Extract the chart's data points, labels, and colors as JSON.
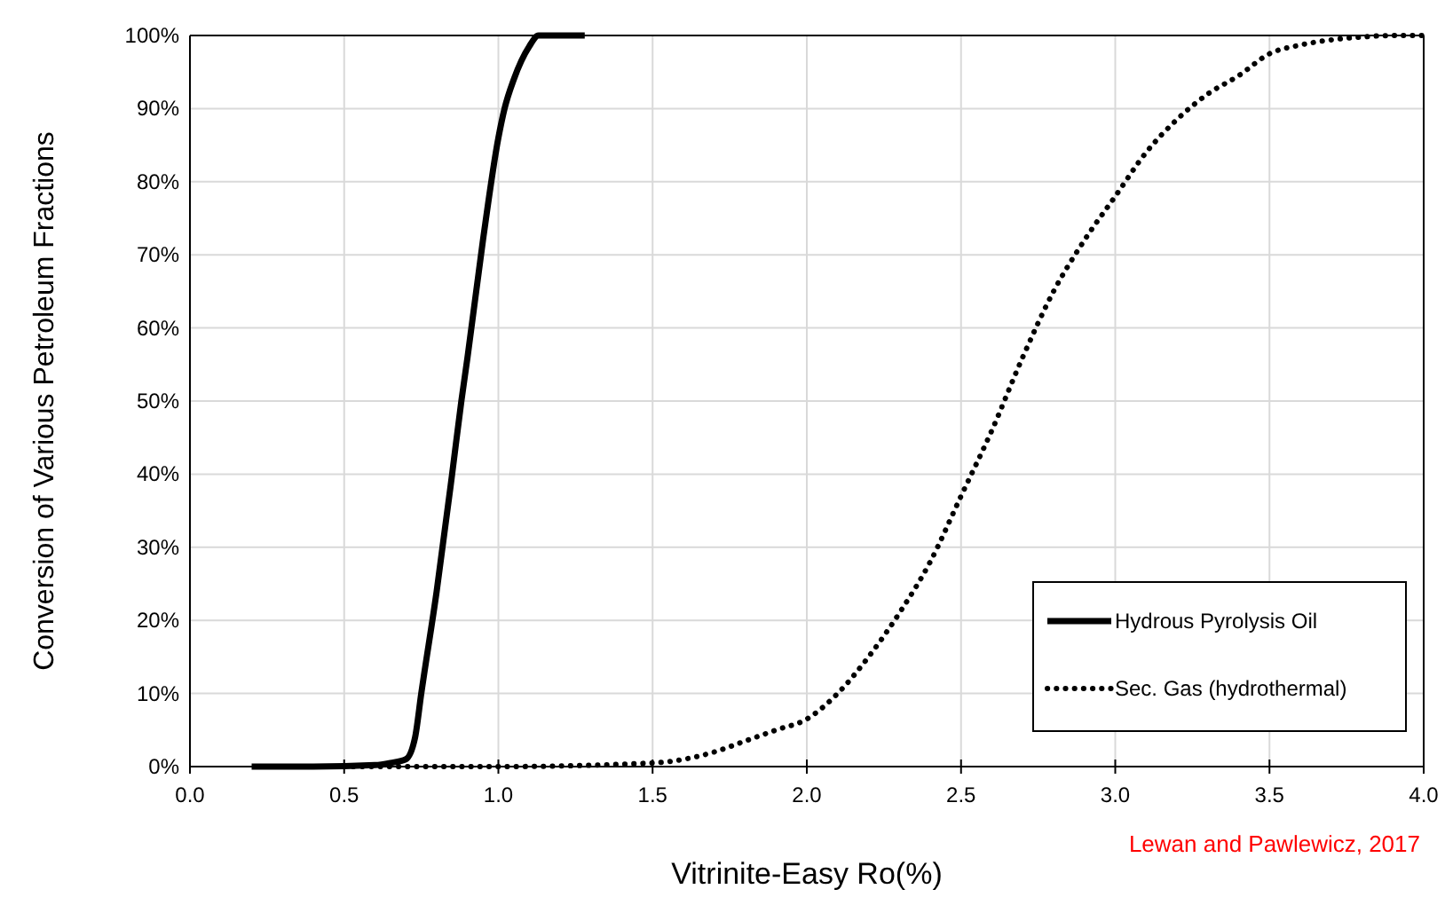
{
  "chart_data": {
    "type": "line",
    "xlabel": "Vitrinite-Easy Ro(%)",
    "ylabel": "Conversion of Various Petroleum Fractions",
    "annotations": [
      "Lewan and Pawlewicz, 2017"
    ],
    "xlim": [
      0,
      4
    ],
    "xticks": [
      {
        "value": 0,
        "label": "0.0"
      },
      {
        "value": 0.5,
        "label": "0.5"
      },
      {
        "value": 1,
        "label": "1.0"
      },
      {
        "value": 1.5,
        "label": "1.5"
      },
      {
        "value": 2,
        "label": "2.0"
      },
      {
        "value": 2.5,
        "label": "2.5"
      },
      {
        "value": 3,
        "label": "3.0"
      },
      {
        "value": 3.5,
        "label": "3.5"
      },
      {
        "value": 4,
        "label": "4.0"
      }
    ],
    "ylim": [
      0,
      100
    ],
    "yticks": [
      {
        "value": 0,
        "label": "0%"
      },
      {
        "value": 10,
        "label": "10%"
      },
      {
        "value": 20,
        "label": "20%"
      },
      {
        "value": 30,
        "label": "30%"
      },
      {
        "value": 40,
        "label": "40%"
      },
      {
        "value": 50,
        "label": "50%"
      },
      {
        "value": 60,
        "label": "60%"
      },
      {
        "value": 70,
        "label": "70%"
      },
      {
        "value": 80,
        "label": "80%"
      },
      {
        "value": 90,
        "label": "90%"
      },
      {
        "value": 100,
        "label": "100%"
      }
    ],
    "grid": true,
    "legend": "bottom right",
    "series": [
      {
        "name": "Hydrous Pyrolysis Oil",
        "color": "#000000",
        "line_style": "solid",
        "x": [
          0.2,
          0.4,
          0.6,
          0.65,
          0.7,
          0.73,
          0.75,
          0.8,
          0.85,
          0.88,
          0.9,
          0.95,
          1.0,
          1.02,
          1.05,
          1.1,
          1.13,
          1.2,
          1.28
        ],
        "values": [
          0,
          0,
          0.2,
          0.5,
          1,
          4,
          10,
          24,
          40,
          50,
          56,
          72,
          86,
          90,
          94,
          98.5,
          100,
          100,
          100
        ]
      },
      {
        "name": "Sec. Gas (hydrothermal)",
        "color": "#000000",
        "line_style": "dotted",
        "x": [
          0.5,
          1.0,
          1.5,
          1.7,
          1.8,
          1.9,
          2.0,
          2.1,
          2.2,
          2.3,
          2.4,
          2.5,
          2.6,
          2.7,
          2.8,
          2.9,
          3.0,
          3.1,
          3.2,
          3.3,
          3.4,
          3.5,
          3.6,
          3.7,
          3.8,
          3.9,
          4.0
        ],
        "values": [
          0,
          0,
          0.5,
          2,
          3.5,
          5,
          6.5,
          10,
          15,
          21,
          28,
          37,
          46,
          56,
          65,
          72,
          78,
          84,
          88.5,
          92,
          94.5,
          97.5,
          98.7,
          99.4,
          99.8,
          100,
          100
        ]
      }
    ]
  }
}
